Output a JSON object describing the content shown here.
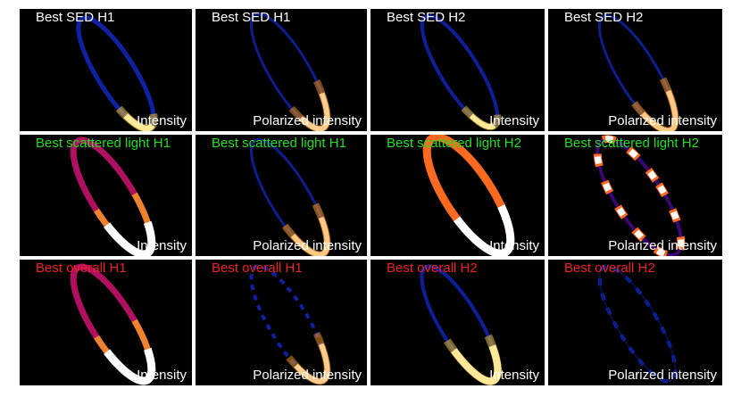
{
  "figure": {
    "colors": {
      "background": "#000000",
      "separator": "#ffffff",
      "row_title_colors": [
        "#ffffff",
        "#22dd22",
        "#ee2222"
      ],
      "panel_type_text": "#ffffff"
    },
    "rows": [
      {
        "panels": [
          {
            "title": "Best SED H1",
            "type": "Intensity"
          },
          {
            "title": "Best SED H1",
            "type": "Polarized intensity"
          },
          {
            "title": "Best SED H2",
            "type": "Intensity"
          },
          {
            "title": "Best SED H2",
            "type": "Polarized intensity"
          }
        ]
      },
      {
        "panels": [
          {
            "title": "Best scattered light H1",
            "type": "Intensity"
          },
          {
            "title": "Best scattered light H1",
            "type": "Polarized intensity"
          },
          {
            "title": "Best scattered light H2",
            "type": "Intensity"
          },
          {
            "title": "Best scattered light H2",
            "type": "Polarized intensity"
          }
        ]
      },
      {
        "panels": [
          {
            "title": "Best overall H1",
            "type": "Intensity"
          },
          {
            "title": "Best overall H1",
            "type": "Polarized intensity"
          },
          {
            "title": "Best overall H2",
            "type": "Intensity"
          },
          {
            "title": "Best overall H2",
            "type": "Polarized intensity"
          }
        ]
      }
    ]
  }
}
